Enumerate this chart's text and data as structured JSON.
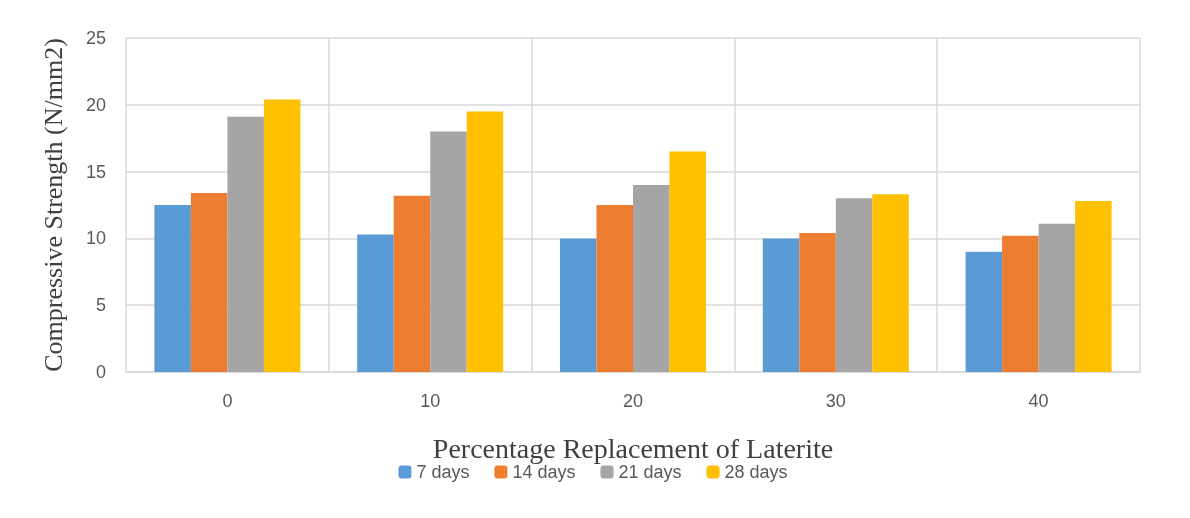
{
  "chart_data": {
    "type": "bar",
    "xlabel": "Percentage Replacement of Laterite",
    "ylabel": "Compressive Strength (N/mm2)",
    "categories": [
      "0",
      "10",
      "20",
      "30",
      "40"
    ],
    "series": [
      {
        "name": "7 days",
        "color": "#5b9bd5",
        "values": [
          12.5,
          10.3,
          10.0,
          10.0,
          9.0
        ]
      },
      {
        "name": "14 days",
        "color": "#ed7d31",
        "values": [
          13.4,
          13.2,
          12.5,
          10.4,
          10.2
        ]
      },
      {
        "name": "21 days",
        "color": "#a5a5a5",
        "values": [
          19.1,
          18.0,
          14.0,
          13.0,
          11.1
        ]
      },
      {
        "name": "28 days",
        "color": "#ffc000",
        "values": [
          20.4,
          19.5,
          16.5,
          13.3,
          12.8
        ]
      }
    ],
    "ylim": [
      0,
      25
    ],
    "yticks": [
      0,
      5,
      10,
      15,
      20,
      25
    ],
    "grid": true,
    "legend": "bottom"
  }
}
